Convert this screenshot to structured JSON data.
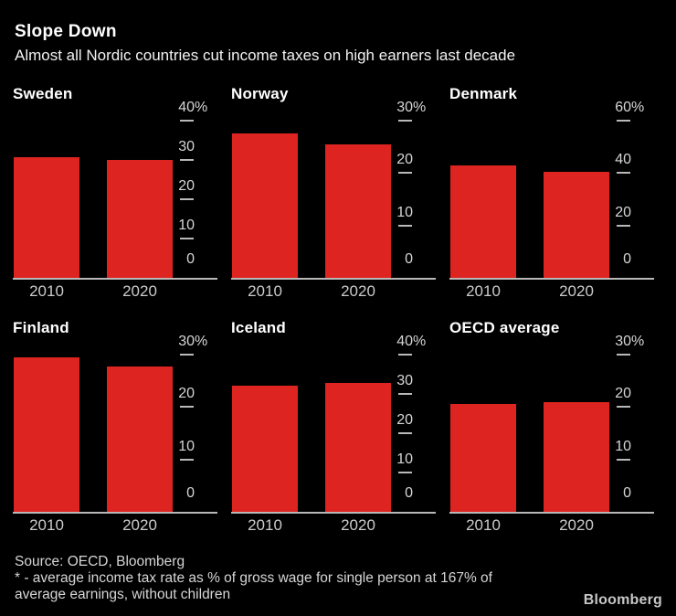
{
  "header": {
    "title": "Slope Down",
    "subtitle": "Almost all Nordic countries cut income taxes on high earners last decade"
  },
  "chart_data": {
    "type": "bar",
    "categories": [
      "2010",
      "2020"
    ],
    "panels": [
      {
        "title": "Sweden",
        "ylim": [
          0,
          40
        ],
        "ticks": [
          40,
          30,
          20,
          10,
          0
        ],
        "values": [
          30.8,
          29.9
        ]
      },
      {
        "title": "Norway",
        "ylim": [
          0,
          30
        ],
        "ticks": [
          30,
          20,
          10,
          0
        ],
        "values": [
          27.6,
          25.5
        ]
      },
      {
        "title": "Denmark",
        "ylim": [
          0,
          60
        ],
        "ticks": [
          60,
          40,
          20,
          0
        ],
        "values": [
          43.0,
          40.5
        ]
      },
      {
        "title": "Finland",
        "ylim": [
          0,
          30
        ],
        "ticks": [
          30,
          20,
          10,
          0
        ],
        "values": [
          29.4,
          27.8
        ]
      },
      {
        "title": "Iceland",
        "ylim": [
          0,
          40
        ],
        "ticks": [
          40,
          30,
          20,
          10,
          0
        ],
        "values": [
          32.0,
          32.8
        ]
      },
      {
        "title": "OECD average",
        "ylim": [
          0,
          30
        ],
        "ticks": [
          30,
          20,
          10,
          0
        ],
        "values": [
          20.6,
          20.9
        ]
      }
    ],
    "top_tick_suffix": "%",
    "grid": false,
    "legend": "none",
    "axis_side": "right"
  },
  "colors": {
    "background": "#000000",
    "bar": "#dd2420",
    "axis_line": "#b9b9b9",
    "axis_text": "#d6d6d6"
  },
  "footer": {
    "source": "Source: OECD, Bloomberg",
    "note_line1": "* - average income tax rate as % of gross wage for single person at 167% of",
    "note_line2": "average earnings, without children",
    "logo": "Bloomberg"
  }
}
